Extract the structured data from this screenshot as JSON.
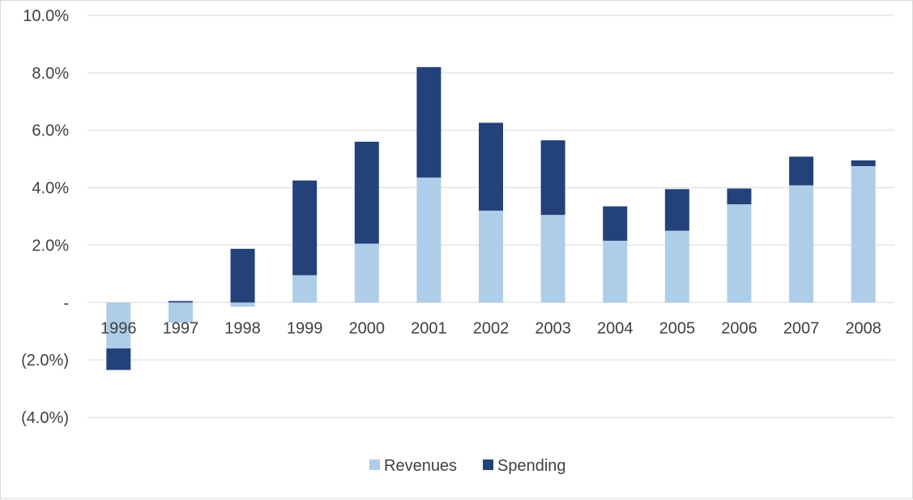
{
  "chart_data": {
    "type": "bar",
    "stacked": true,
    "title": "",
    "xlabel": "",
    "ylabel": "",
    "categories": [
      "1996",
      "1997",
      "1998",
      "1999",
      "2000",
      "2001",
      "2002",
      "2003",
      "2004",
      "2005",
      "2006",
      "2007",
      "2008"
    ],
    "series": [
      {
        "name": "Revenues",
        "color": "#aecde9",
        "values": [
          -1.6,
          -0.7,
          -0.15,
          0.95,
          2.05,
          4.35,
          3.2,
          3.05,
          2.15,
          2.5,
          3.42,
          4.08,
          4.75
        ]
      },
      {
        "name": "Spending",
        "color": "#24427a",
        "values": [
          -0.75,
          0.05,
          1.87,
          3.3,
          3.55,
          3.85,
          3.06,
          2.6,
          1.2,
          1.45,
          0.55,
          1.0,
          0.2
        ]
      }
    ],
    "ylim": [
      -4.0,
      10.0
    ],
    "yticks": [
      10.0,
      8.0,
      6.0,
      4.0,
      2.0,
      0,
      -2.0,
      -4.0
    ],
    "ytick_labels": [
      "10.0%",
      "8.0%",
      "6.0%",
      "4.0%",
      "2.0%",
      "-",
      "(2.0%)",
      "(4.0%)"
    ],
    "grid": true,
    "gridline_color": "#d9d9d9",
    "legend_position": "bottom"
  }
}
